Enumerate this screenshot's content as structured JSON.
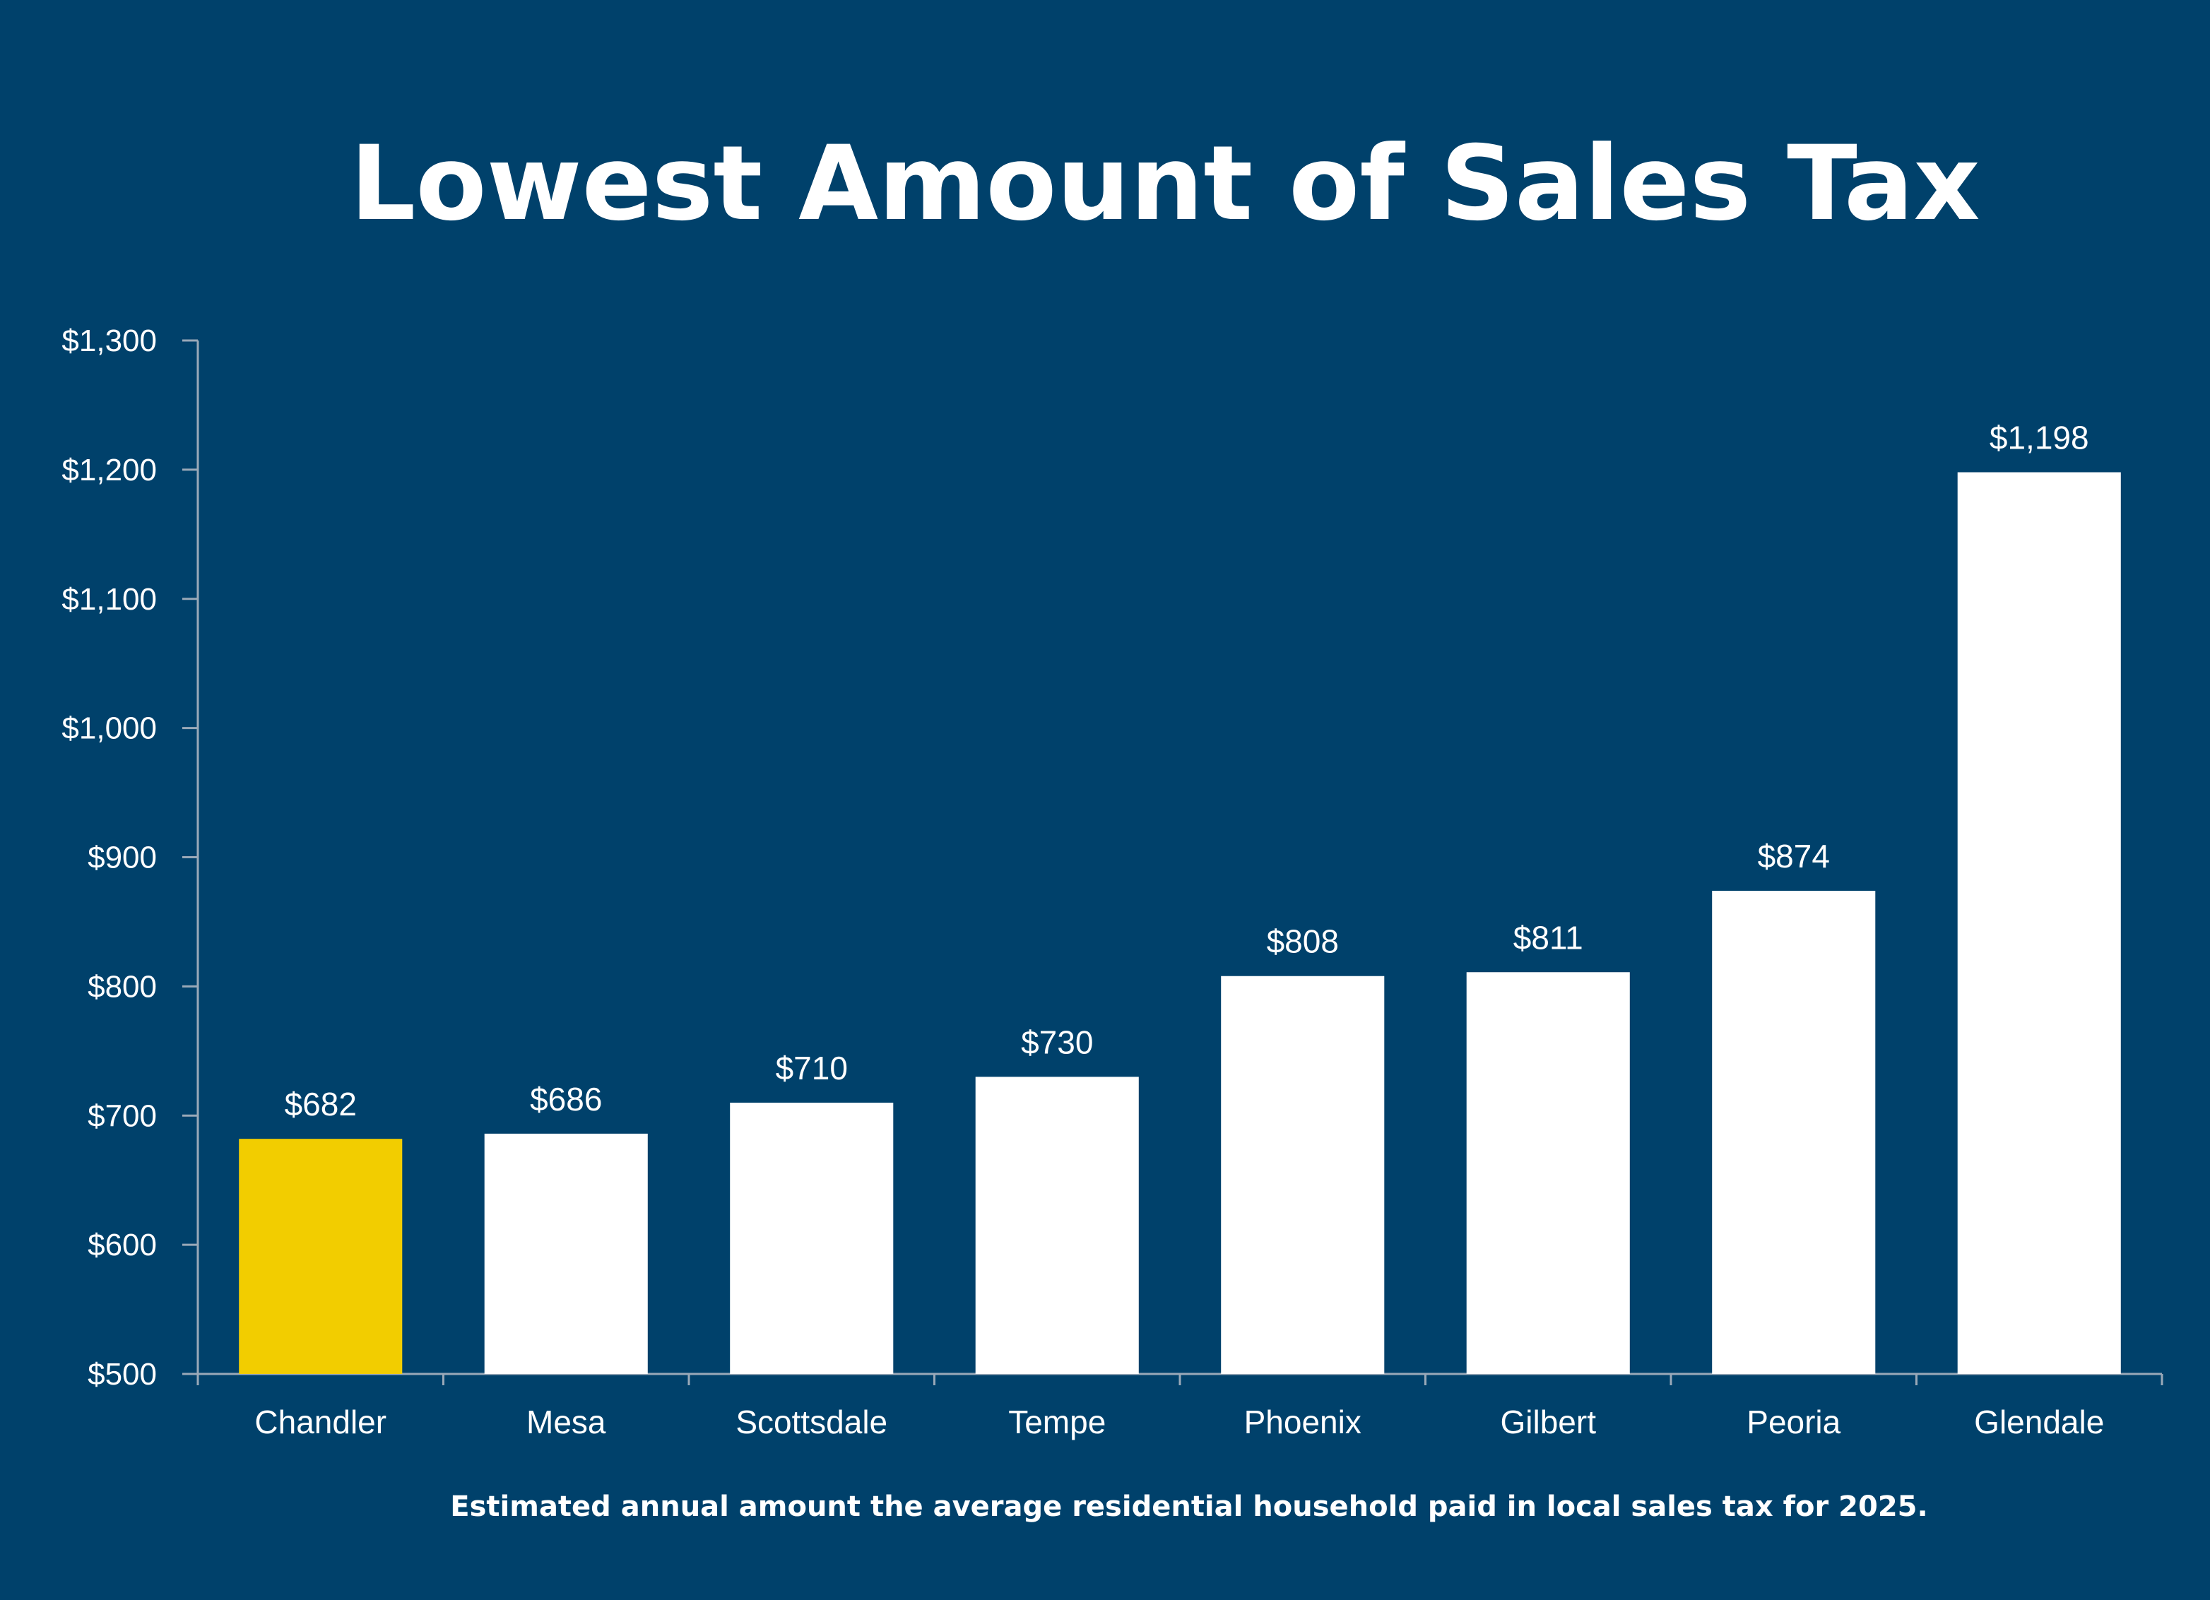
{
  "chart_data": {
    "type": "bar",
    "title": "Lowest Amount of Sales Tax",
    "caption": "Estimated annual amount the average residential household paid in local sales tax for 2025.",
    "xlabel": "",
    "ylabel": "",
    "categories": [
      "Chandler",
      "Mesa",
      "Scottsdale",
      "Tempe",
      "Phoenix",
      "Gilbert",
      "Peoria",
      "Glendale"
    ],
    "values": [
      682,
      686,
      710,
      730,
      808,
      811,
      874,
      1198
    ],
    "value_labels": [
      "$682",
      "$686",
      "$710",
      "$730",
      "$808",
      "$811",
      "$874",
      "$1,198"
    ],
    "ylim": [
      500,
      1300
    ],
    "yticks": [
      500,
      600,
      700,
      800,
      900,
      1000,
      1100,
      1200,
      1300
    ],
    "ytick_labels": [
      "$500",
      "$600",
      "$700",
      "$800",
      "$900",
      "$1,000",
      "$1,100",
      "$1,200",
      "$1,300"
    ],
    "highlight_index": 0,
    "grid": false,
    "colors": {
      "background": "#00416b",
      "bar": "#ffffff",
      "highlight_bar": "#f2cd00",
      "axis": "#9aa9b8",
      "text": "#ffffff"
    }
  }
}
